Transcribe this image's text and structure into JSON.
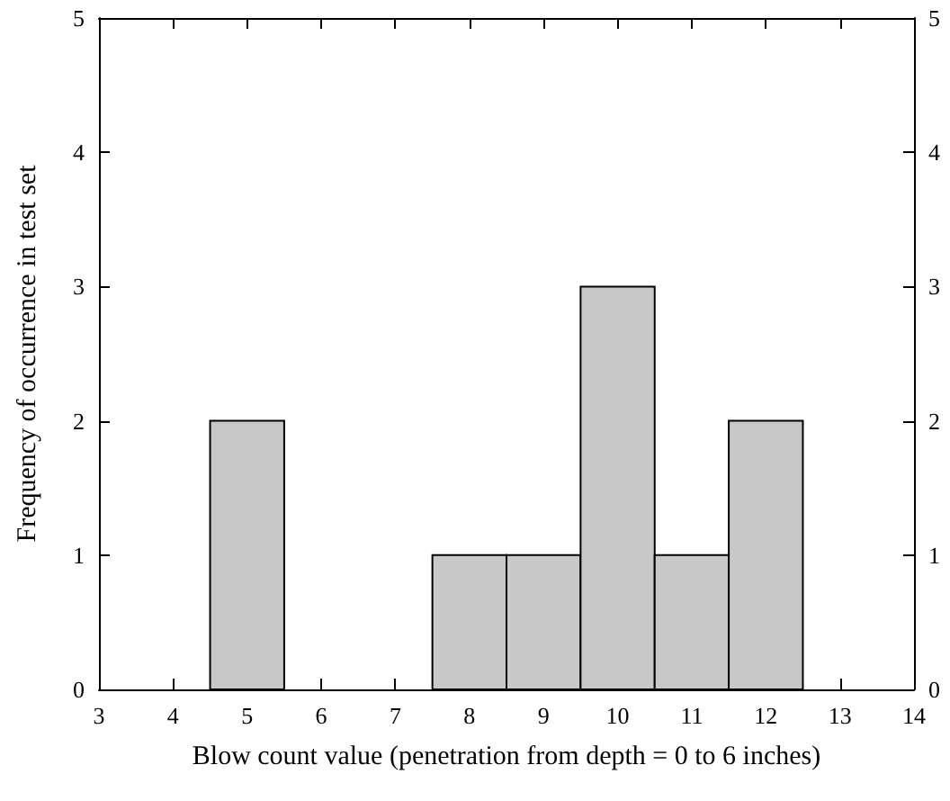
{
  "chart_data": {
    "type": "histogram",
    "xlabel": "Blow count value (penetration from depth = 0 to 6 inches)",
    "ylabel": "Frequency of occurrence in test set",
    "bins": [
      4.5,
      5.5,
      6.5,
      7.5,
      8.5,
      9.5,
      10.5,
      11.5,
      12.5
    ],
    "values": [
      2,
      0,
      0,
      1,
      1,
      3,
      1,
      2
    ],
    "color": "#c8c8c8",
    "xlim": [
      3,
      14
    ],
    "xticks": [
      3,
      4,
      5,
      6,
      7,
      8,
      9,
      10,
      11,
      12,
      13,
      14
    ],
    "ylim": [
      0,
      5
    ],
    "yticks": [
      0,
      1,
      2,
      3,
      4,
      5
    ],
    "y2lim": [
      0,
      5
    ],
    "y2ticks": [
      0,
      1,
      2,
      3,
      4,
      5
    ],
    "grid": false
  }
}
